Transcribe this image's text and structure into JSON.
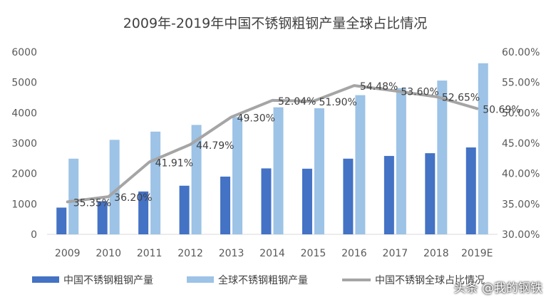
{
  "watermark": "头条 @我的钢铁",
  "chart_data": {
    "type": "bar",
    "title": "2009年-2019年中国不锈钢粗钢产量全球占比情况",
    "categories": [
      "2009",
      "2010",
      "2011",
      "2012",
      "2013",
      "2014",
      "2015",
      "2016",
      "2017",
      "2018",
      "2019E"
    ],
    "series": [
      {
        "name": "中国不锈钢粗钢产量",
        "type": "bar",
        "axis": "left",
        "color": "#4472C4",
        "values": [
          880,
          1090,
          1410,
          1600,
          1900,
          2170,
          2160,
          2490,
          2580,
          2670,
          2860
        ]
      },
      {
        "name": "全球不锈钢粗钢产量",
        "type": "bar",
        "axis": "left",
        "color": "#9DC3E6",
        "values": [
          2490,
          3110,
          3380,
          3600,
          3860,
          4180,
          4150,
          4580,
          4810,
          5060,
          5630
        ]
      },
      {
        "name": "中国不锈钢全球占比情况",
        "type": "line",
        "axis": "right",
        "color": "#A5A5A5",
        "values": [
          35.35,
          36.2,
          41.91,
          44.79,
          49.3,
          52.04,
          51.9,
          54.48,
          53.6,
          52.65,
          50.69
        ],
        "labels": [
          "35.35%",
          "36.20%",
          "41.91%",
          "44.79%",
          "49.30%",
          "52.04%",
          "51.90%",
          "54.48%",
          "53.60%",
          "52.65%",
          "50.69%"
        ]
      }
    ],
    "ylim_left": [
      0,
      6000
    ],
    "yticks_left": [
      "0",
      "1000",
      "2000",
      "3000",
      "4000",
      "5000",
      "6000"
    ],
    "ylim_right": [
      30,
      60
    ],
    "yticks_right": [
      "30.00%",
      "35.00%",
      "40.00%",
      "45.00%",
      "50.00%",
      "55.00%",
      "60.00%"
    ],
    "grid": false,
    "legend_position": "bottom"
  }
}
